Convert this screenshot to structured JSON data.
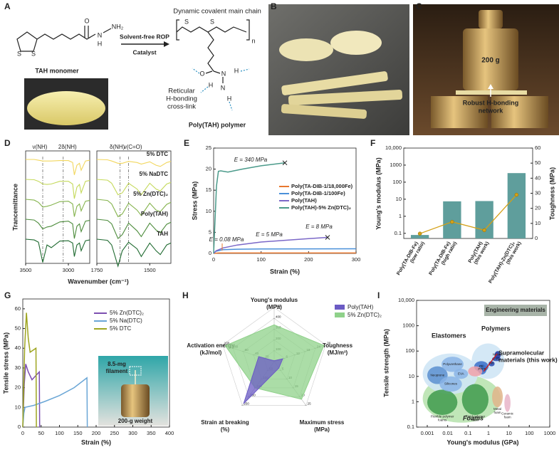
{
  "panel_a": {
    "letter": "A",
    "monomer": "TAH monomer",
    "arrow_top": "Solvent-free ROP",
    "arrow_bottom": "Catalyst",
    "main_chain": "Dynamic covalent main chain",
    "crosslink": [
      "Reticular",
      "H-bonding",
      "cross-link"
    ],
    "polymer": "Poly(TAH) polymer",
    "monomer_atoms": [
      "S",
      "S",
      "O",
      "N",
      "H",
      "NH₂"
    ],
    "polymer_atoms": [
      "S",
      "S",
      "n",
      "O",
      "N",
      "H",
      "H",
      "N",
      "H"
    ]
  },
  "panel_b": {
    "letter": "B"
  },
  "panel_c": {
    "letter": "C",
    "weight": "200 g",
    "network": [
      "Robust H-bonding",
      "network"
    ]
  },
  "chart_data": [
    {
      "type": "spectra",
      "letter": "D",
      "ylabel": "Trancemittance",
      "xlabel": "Wavenumber (cm⁻¹)",
      "panels": [
        {
          "xlim": [
            3500,
            2750
          ],
          "xticks": [
            3500,
            3000
          ],
          "x": [
            3500,
            3400,
            3350,
            3300,
            3250,
            3200,
            3100,
            3000,
            2950,
            2930,
            2900,
            2870,
            2850,
            2800,
            2750
          ],
          "annotations": [
            {
              "text": "ν(NH)",
              "x": 3300
            },
            {
              "text": "2δ(NH)",
              "x": 3060
            }
          ]
        },
        {
          "xlim": [
            1750,
            1400
          ],
          "xticks": [
            1750,
            1500
          ],
          "x": [
            1750,
            1700,
            1680,
            1650,
            1630,
            1600,
            1560,
            1540,
            1500,
            1470,
            1450,
            1420,
            1400
          ],
          "annotations": [
            {
              "text": "δ(NH)",
              "x": 1640
            },
            {
              "text": "ν(C=O)",
              "x": 1600
            }
          ]
        }
      ],
      "series": [
        {
          "name": "5% DTC",
          "color": "#f2d75e",
          "values": [
            [
              100,
              100,
              98,
              96,
              96,
              96,
              97,
              97,
              92,
              60,
              85,
              90,
              72,
              96,
              98
            ],
            [
              100,
              99,
              96,
              90,
              90,
              95,
              92,
              88,
              94,
              85,
              82,
              92,
              95
            ]
          ]
        },
        {
          "name": "5% NaDTC",
          "color": "#c4d95a",
          "values": [
            [
              100,
              99,
              95,
              88,
              87,
              88,
              95,
              95,
              88,
              50,
              80,
              87,
              65,
              95,
              97
            ],
            [
              100,
              98,
              90,
              60,
              65,
              90,
              75,
              60,
              90,
              75,
              70,
              88,
              92
            ]
          ]
        },
        {
          "name": "5% Zn(DTC)₂",
          "color": "#84b34c",
          "values": [
            [
              100,
              98,
              92,
              80,
              82,
              85,
              94,
              95,
              88,
              55,
              82,
              88,
              70,
              95,
              97
            ],
            [
              100,
              97,
              88,
              55,
              62,
              90,
              72,
              58,
              90,
              72,
              68,
              87,
              92
            ]
          ]
        },
        {
          "name": "Poly(TAH)",
          "color": "#4d8c3c",
          "values": [
            [
              100,
              98,
              90,
              75,
              80,
              82,
              93,
              95,
              88,
              50,
              82,
              88,
              68,
              95,
              97
            ],
            [
              100,
              97,
              88,
              50,
              60,
              90,
              70,
              55,
              90,
              72,
              65,
              87,
              92
            ]
          ]
        },
        {
          "name": "TAH",
          "color": "#1f6a30",
          "values": [
            [
              100,
              98,
              92,
              40,
              85,
              78,
              95,
              96,
              90,
              55,
              85,
              90,
              70,
              96,
              98
            ],
            [
              100,
              97,
              85,
              30,
              70,
              92,
              75,
              55,
              90,
              70,
              60,
              85,
              90
            ]
          ]
        }
      ]
    },
    {
      "type": "line",
      "letter": "E",
      "xlabel": "Strain (%)",
      "ylabel": "Stress (MPa)",
      "xlim": [
        0,
        300
      ],
      "xticks": [
        0,
        100,
        200,
        300
      ],
      "ylim": [
        0,
        25
      ],
      "yticks": [
        0,
        5,
        10,
        15,
        20,
        25
      ],
      "series": [
        {
          "name": "Poly(TA-DIB-1/18,000Fe)",
          "color": "#e8772e",
          "x": [
            0,
            10,
            300
          ],
          "values": [
            0,
            0.1,
            0.1
          ]
        },
        {
          "name": "Poly(TA-DIB-1/100Fe)",
          "color": "#4a90d9",
          "x": [
            0,
            5,
            20,
            50,
            100,
            300
          ],
          "values": [
            0,
            0.5,
            0.9,
            1.0,
            1.05,
            1.1
          ]
        },
        {
          "name": "Poly(TAH)",
          "color": "#7b68c8",
          "x": [
            0,
            5,
            20,
            50,
            100,
            150,
            200,
            240
          ],
          "values": [
            0,
            0.6,
            1.3,
            2.0,
            2.7,
            3.1,
            3.5,
            3.8
          ],
          "end_marker": true
        },
        {
          "name": "Poly(TAH)-5% Zn(DTC)₂",
          "color": "#4a9a8a",
          "x": [
            0,
            3,
            6,
            10,
            15,
            30,
            60,
            100,
            150
          ],
          "values": [
            0,
            8,
            16,
            19.5,
            19.6,
            19.3,
            20,
            20.8,
            21.5
          ],
          "end_marker": true
        }
      ],
      "annotations": [
        "E = 340 MPa",
        "E = 8 MPa",
        "E = 5 MPa",
        "E = 0.08 MPa"
      ]
    },
    {
      "type": "bar_line",
      "letter": "F",
      "ylabel": "Young's modulus (MPa)",
      "y2label": "Toughness (MPa)",
      "categories": [
        [
          "Poly(TA-DIB-Fe)",
          "(low ratio)"
        ],
        [
          "Poly(TA-DIB-Fe)",
          "(high ratio)"
        ],
        [
          "Poly(TAH)",
          "(this work)"
        ],
        [
          "Poly(TAH)-Zn(DTC)₂",
          "(this work)"
        ]
      ],
      "log_y": true,
      "ylim": [
        0.05,
        10000
      ],
      "yticks": [
        0.1,
        1,
        10,
        100,
        1000,
        {
          "value": 10000,
          "label": "10,000"
        }
      ],
      "y2lim": [
        0,
        60
      ],
      "y2ticks": [
        0,
        10,
        20,
        30,
        40,
        50,
        60
      ],
      "series": [
        {
          "color": "#5f9e9c",
          "values": [
            0.08,
            7.5,
            7.8,
            340
          ]
        },
        {
          "color": "#d4a017",
          "axis": "y2",
          "values": [
            3.2,
            11,
            5.5,
            29
          ]
        }
      ]
    },
    {
      "type": "line",
      "letter": "G",
      "xlabel": "Strain (%)",
      "ylabel": "Tensile stress (MPa)",
      "xlim": [
        0,
        400
      ],
      "xticks": [
        0,
        50,
        100,
        150,
        200,
        250,
        300,
        350,
        400
      ],
      "ylim": [
        0,
        65
      ],
      "yticks": [
        0,
        10,
        20,
        30,
        40,
        50,
        60
      ],
      "series": [
        {
          "name": "5% Zn(DTC)₂",
          "color": "#7d4fb0",
          "x": [
            0,
            4,
            8,
            15,
            25,
            35,
            45,
            46
          ],
          "values": [
            0,
            22,
            32,
            28,
            24,
            26,
            28,
            0
          ]
        },
        {
          "name": "5% Na(DTC)",
          "color": "#6aa6d6",
          "x": [
            0,
            3,
            6,
            30,
            60,
            100,
            140,
            175,
            176
          ],
          "values": [
            0,
            7,
            10,
            11,
            13,
            16,
            20,
            25,
            0
          ]
        },
        {
          "name": "5% DTC",
          "color": "#9ea520",
          "x": [
            0,
            5,
            10,
            15,
            20,
            28,
            36,
            37
          ],
          "values": [
            0,
            40,
            58,
            45,
            38,
            39,
            40,
            0
          ]
        }
      ],
      "inset": [
        "8.5-mg",
        "filament",
        "200-g weight"
      ]
    },
    {
      "type": "radar",
      "letter": "H",
      "axes": [
        {
          "name": "Young's modulus",
          "unit": "(MPa)",
          "max": 500,
          "ticks": [
            100,
            200,
            300,
            400,
            500
          ]
        },
        {
          "name": "Toughness",
          "unit": "(MJ/m³)",
          "max": 30,
          "ticks": [
            6,
            12,
            18,
            24,
            30
          ]
        },
        {
          "name": "Maximum stress",
          "unit": "(MPa)",
          "max": 25,
          "ticks": [
            5,
            10,
            15,
            20,
            25
          ]
        },
        {
          "name": "Strain at breaking",
          "unit": "(%)",
          "max": 250,
          "ticks": [
            50,
            100,
            150,
            200,
            250
          ]
        },
        {
          "name": "Activation energy",
          "unit": "(kJ/mol)",
          "max": 100,
          "ticks": [
            20,
            40,
            60,
            80,
            100
          ]
        }
      ],
      "series": [
        {
          "name": "Poly(TAH)",
          "color": "#6b5bc4",
          "values": [
            8,
            5,
            3.7,
            240,
            30
          ]
        },
        {
          "name": "5% Zn(DTC)₂",
          "color": "#8fd18a",
          "values": [
            340,
            29,
            21.5,
            150,
            95
          ]
        }
      ]
    },
    {
      "type": "ashby",
      "letter": "I",
      "xlabel": "Young's modulus (GPa)",
      "ylabel": "Tensile strength (MPa)",
      "banner": "Engineering materials",
      "log_x": true,
      "log_y": true,
      "xlim": [
        0.0003,
        1000
      ],
      "xticks": [
        0.001,
        0.01,
        0.1,
        1,
        10,
        100,
        1000
      ],
      "ylim": [
        0.1,
        10000
      ],
      "yticks": [
        0.1,
        1,
        10,
        100,
        1000,
        {
          "value": 10000,
          "label": "10,000"
        }
      ],
      "regions": [
        {
          "label": [
            "Foams"
          ],
          "color": "#b9e3b0",
          "x": [
            0.0006,
            4
          ],
          "y": [
            0.15,
            12
          ]
        },
        {
          "label": [
            "Elastomers"
          ],
          "color": "#cfe6f5",
          "x": [
            0.0006,
            0.3
          ],
          "y": [
            2,
            80
          ]
        },
        {
          "label": [
            "Polymers"
          ],
          "color": "#cfe6f5",
          "x": [
            0.15,
            6
          ],
          "y": [
            8,
            200
          ]
        },
        {
          "label": [
            "Flexible polymer",
            "foams"
          ],
          "color": "#3f9a4c",
          "x": [
            0.001,
            0.03
          ],
          "y": [
            0.3,
            3
          ]
        },
        {
          "label": [
            "Rigid polymer",
            "foam"
          ],
          "color": "#3f9a4c",
          "x": [
            0.05,
            1
          ],
          "y": [
            0.3,
            5
          ]
        },
        {
          "label": [
            "Metal",
            "foam"
          ],
          "color": "#e0b48a",
          "x": [
            1.5,
            5
          ],
          "y": [
            0.6,
            4
          ]
        },
        {
          "label": [
            "Ceramic",
            "foam"
          ],
          "color": "#e8b4c8",
          "x": [
            6,
            12
          ],
          "y": [
            0.4,
            2
          ]
        },
        {
          "label": [
            "Neoprene"
          ],
          "color": "#5a8fd0",
          "x": [
            0.001,
            0.01
          ],
          "y": [
            5,
            25
          ]
        },
        {
          "label": [
            "Polyurethane"
          ],
          "color": "#8ab4e6",
          "x": [
            0.005,
            0.06
          ],
          "y": [
            15,
            60
          ]
        },
        {
          "label": [
            "Silicones"
          ],
          "color": "#8ab4e6",
          "x": [
            0.004,
            0.05
          ],
          "y": [
            2.5,
            10
          ]
        },
        {
          "label": [
            "EVA"
          ],
          "color": "#8ab4e6",
          "x": [
            0.02,
            0.1
          ],
          "y": [
            8,
            20
          ]
        },
        {
          "label": [
            "PE"
          ],
          "color": "#3b6fc9",
          "x": [
            0.2,
            1
          ],
          "y": [
            15,
            40
          ]
        },
        {
          "label": [
            "PTFE"
          ],
          "color": "#3b6fc9",
          "x": [
            0.3,
            0.8
          ],
          "y": [
            12,
            30
          ]
        },
        {
          "label": [
            "PP"
          ],
          "color": "#2849b0",
          "x": [
            1,
            2
          ],
          "y": [
            25,
            40
          ]
        },
        {
          "label": [
            "PVC"
          ],
          "color": "#2849b0",
          "x": [
            1.5,
            4
          ],
          "y": [
            40,
            60
          ]
        },
        {
          "label": [
            "Nylons"
          ],
          "color": "#1a2f9c",
          "x": [
            2,
            4
          ],
          "y": [
            50,
            100
          ]
        },
        {
          "label": [
            "Supramolecular",
            "materials (this work)"
          ],
          "color": "#f0a0a8",
          "x": [
            0.1,
            0.5
          ],
          "y": [
            10,
            25
          ]
        }
      ]
    }
  ]
}
